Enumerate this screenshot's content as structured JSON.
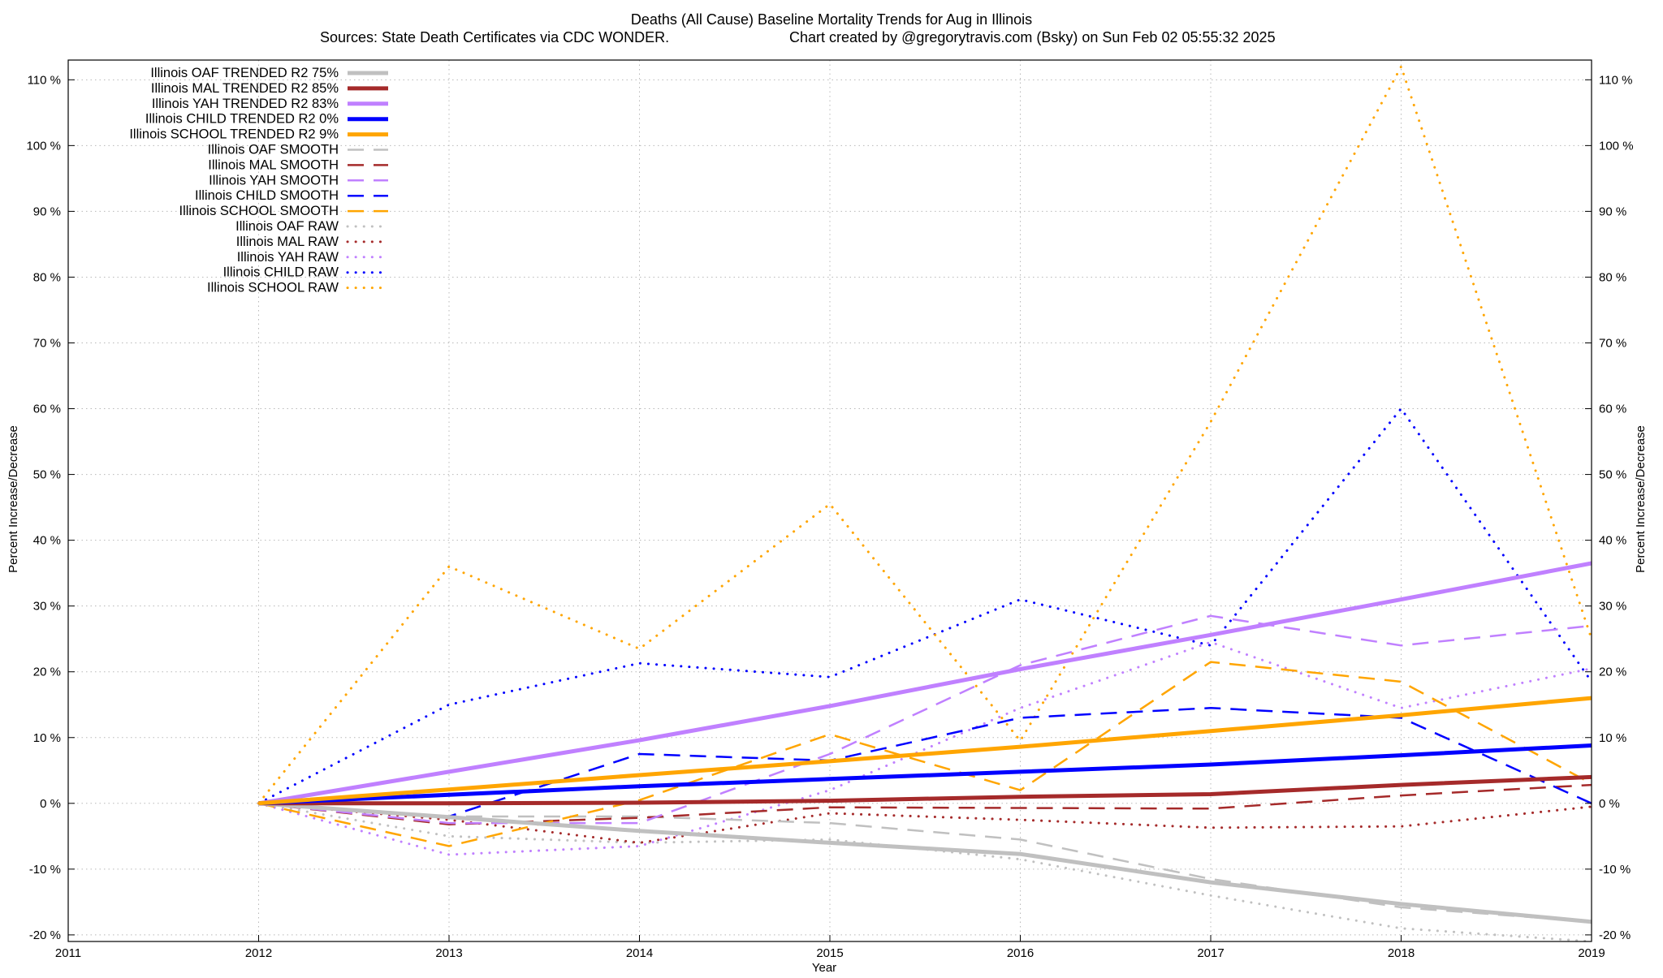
{
  "chart_data": {
    "type": "line",
    "title": "Deaths (All Cause)  Baseline Mortality Trends for Aug in Illinois",
    "subtitle_left": "Sources: State Death Certificates via CDC WONDER.",
    "subtitle_right": "Chart created by @gregorytravis.com (Bsky) on Sun Feb 02 05:55:32 2025",
    "xlabel": "Year",
    "ylabel_left": "Percent Increase/Decrease",
    "ylabel_right": "Percent Increase/Decrease",
    "xlim": [
      2011,
      2019
    ],
    "ylim": [
      -21,
      113
    ],
    "x_ticks": [
      "2011",
      "2012",
      "2013",
      "2014",
      "2015",
      "2016",
      "2017",
      "2018",
      "2019"
    ],
    "y_ticks": [
      {
        "value": -20,
        "label": "-20 %"
      },
      {
        "value": -10,
        "label": "-10 %"
      },
      {
        "value": 0,
        "label": "0 %"
      },
      {
        "value": 10,
        "label": "10 %"
      },
      {
        "value": 20,
        "label": "20 %"
      },
      {
        "value": 30,
        "label": "30 %"
      },
      {
        "value": 40,
        "label": "40 %"
      },
      {
        "value": 50,
        "label": "50 %"
      },
      {
        "value": 60,
        "label": "60 %"
      },
      {
        "value": 70,
        "label": "70 %"
      },
      {
        "value": 80,
        "label": "80 %"
      },
      {
        "value": 90,
        "label": "90 %"
      },
      {
        "value": 100,
        "label": "100 %"
      },
      {
        "value": 110,
        "label": "110 %"
      }
    ],
    "grid": true,
    "legend_position": "top-left",
    "x": [
      2012,
      2013,
      2014,
      2015,
      2016,
      2017,
      2018,
      2019
    ],
    "series": [
      {
        "name": "Illinois OAF TRENDED R2  75%",
        "style": "solid",
        "color": "#c0c0c0",
        "values": [
          0,
          -2.1,
          -4.2,
          -6.0,
          -7.7,
          -12.0,
          -15.3,
          -18.0
        ]
      },
      {
        "name": "Illinois MAL TRENDED R2  85%",
        "style": "solid",
        "color": "#a52a2a",
        "values": [
          0,
          0,
          0.1,
          0.4,
          1.0,
          1.4,
          2.8,
          4.0
        ]
      },
      {
        "name": "Illinois YAH TRENDED R2  83%",
        "style": "solid",
        "color": "#c080ff",
        "values": [
          0,
          4.8,
          9.6,
          14.8,
          20.4,
          25.6,
          31.0,
          36.5
        ]
      },
      {
        "name": "Illinois CHILD TRENDED R2   0%",
        "style": "solid",
        "color": "#0000ff",
        "values": [
          0,
          1.3,
          2.6,
          3.7,
          4.8,
          5.9,
          7.3,
          8.8
        ]
      },
      {
        "name": "Illinois SCHOOL TRENDED R2   9%",
        "style": "solid",
        "color": "#ffa500",
        "values": [
          0,
          2.1,
          4.3,
          6.4,
          8.6,
          11.0,
          13.4,
          16.0
        ]
      },
      {
        "name": "Illinois OAF SMOOTH",
        "style": "dash",
        "color": "#c0c0c0",
        "values": [
          0,
          -2.0,
          -2.0,
          -3.0,
          -5.5,
          -11.5,
          -15.8,
          -18.0
        ]
      },
      {
        "name": "Illinois MAL SMOOTH",
        "style": "dash",
        "color": "#a52a2a",
        "values": [
          0,
          -3.2,
          -2.2,
          -0.6,
          -0.7,
          -0.8,
          1.2,
          2.8
        ]
      },
      {
        "name": "Illinois YAH SMOOTH",
        "style": "dash",
        "color": "#c080ff",
        "values": [
          0,
          -3.0,
          -3.0,
          7.5,
          21.0,
          28.5,
          24.0,
          27.0
        ]
      },
      {
        "name": "Illinois CHILD SMOOTH",
        "style": "dash",
        "color": "#0000ff",
        "values": [
          0,
          -2.0,
          7.5,
          6.5,
          13.0,
          14.5,
          13.0,
          0
        ]
      },
      {
        "name": "Illinois SCHOOL SMOOTH",
        "style": "dash",
        "color": "#ffa500",
        "values": [
          0,
          -6.5,
          0.5,
          10.5,
          2.0,
          21.5,
          18.5,
          3.0
        ]
      },
      {
        "name": "Illinois OAF RAW",
        "style": "dot",
        "color": "#c0c0c0",
        "values": [
          0,
          -5.0,
          -6.0,
          -5.5,
          -8.5,
          -14.0,
          -19.0,
          -21.0
        ]
      },
      {
        "name": "Illinois MAL RAW",
        "style": "dot",
        "color": "#a52a2a",
        "values": [
          0,
          -2.5,
          -6.0,
          -1.5,
          -2.5,
          -3.7,
          -3.5,
          -0.5
        ]
      },
      {
        "name": "Illinois YAH RAW",
        "style": "dot",
        "color": "#c080ff",
        "values": [
          0,
          -7.8,
          -6.5,
          2.0,
          14.5,
          24.5,
          14.5,
          20.5
        ]
      },
      {
        "name": "Illinois CHILD RAW",
        "style": "dot",
        "color": "#0000ff",
        "values": [
          0,
          15.0,
          21.3,
          19.2,
          31.0,
          24.0,
          60.0,
          18.5
        ]
      },
      {
        "name": "Illinois SCHOOL RAW",
        "style": "dot",
        "color": "#ffa500",
        "values": [
          0,
          36.0,
          23.5,
          45.5,
          9.5,
          58.0,
          112.0,
          25.0
        ]
      }
    ]
  }
}
